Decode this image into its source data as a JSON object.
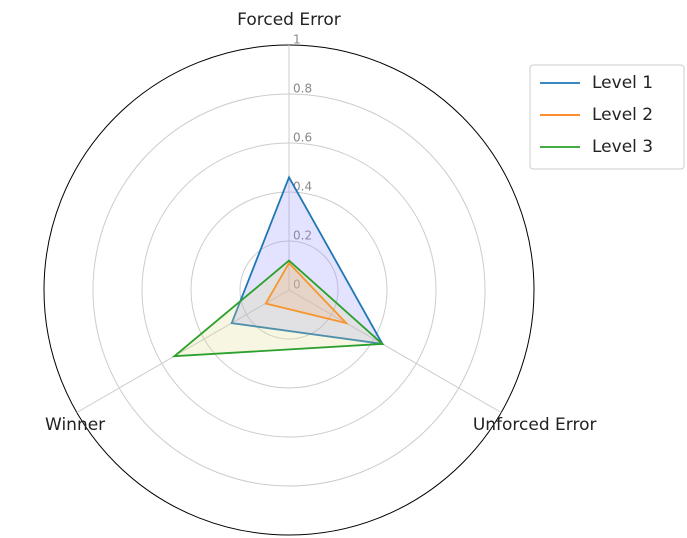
{
  "chart_data": {
    "type": "radar",
    "categories": [
      "Forced Error",
      "Unforced Error",
      "Winner"
    ],
    "series": [
      {
        "name": "Level 1",
        "color": "#1f77b4",
        "fill": "#8f8fff",
        "values": [
          0.46,
          0.44,
          0.27
        ]
      },
      {
        "name": "Level 2",
        "color": "#ff7f0e",
        "fill": "#ff9f6f",
        "values": [
          0.11,
          0.27,
          0.11
        ]
      },
      {
        "name": "Level 3",
        "color": "#2ca02c",
        "fill": "#dcdc8f",
        "values": [
          0.12,
          0.44,
          0.54
        ]
      }
    ],
    "ylim": [
      0,
      1
    ],
    "yticks": [
      0,
      0.2,
      0.4,
      0.6,
      0.8,
      1
    ],
    "grid": true,
    "legend": "upper right"
  }
}
